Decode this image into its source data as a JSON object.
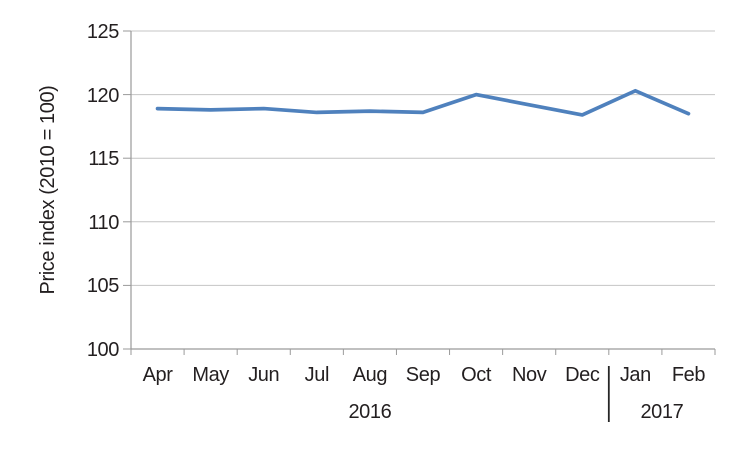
{
  "chart_data": {
    "type": "line",
    "title": "",
    "xlabel": "",
    "ylabel": "Price index (2010 = 100)",
    "categories": [
      "Apr",
      "May",
      "Jun",
      "Jul",
      "Aug",
      "Sep",
      "Oct",
      "Nov",
      "Dec",
      "Jan",
      "Feb"
    ],
    "series": [
      {
        "name": "Price index",
        "values": [
          118.9,
          118.8,
          118.9,
          118.6,
          118.7,
          118.6,
          120.0,
          119.2,
          118.4,
          120.3,
          118.5
        ]
      }
    ],
    "ylim": [
      100,
      125
    ],
    "yticks": [
      100,
      105,
      110,
      115,
      120,
      125
    ],
    "grid": "horizontal",
    "legend": "none",
    "year_groups": [
      {
        "label": "2016",
        "start_index": 0,
        "end_index": 8
      },
      {
        "label": "2017",
        "start_index": 9,
        "end_index": 10
      }
    ],
    "colors": {
      "line": "#4f81bd",
      "gridline": "#c4c4c4",
      "axis": "#9a9a9a",
      "text": "#231f20",
      "year_separator": "#262626",
      "background": "#ffffff"
    }
  }
}
